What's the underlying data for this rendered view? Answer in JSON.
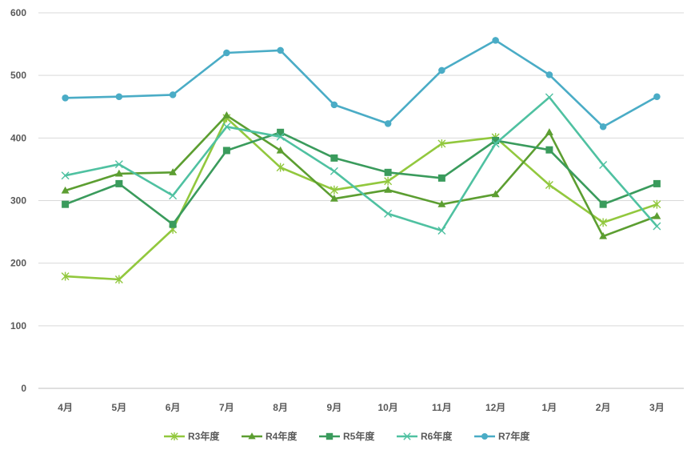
{
  "chart_data": {
    "type": "line",
    "categories": [
      "4月",
      "5月",
      "6月",
      "7月",
      "8月",
      "9月",
      "10月",
      "11月",
      "12月",
      "1月",
      "2月",
      "3月"
    ],
    "series": [
      {
        "name": "R3年度",
        "color": "#92c83e",
        "marker": "star",
        "values": [
          179,
          174,
          254,
          432,
          353,
          317,
          331,
          391,
          401,
          325,
          265,
          294
        ]
      },
      {
        "name": "R4年度",
        "color": "#5c9e31",
        "marker": "triangle",
        "values": [
          316,
          343,
          345,
          436,
          380,
          303,
          317,
          294,
          310,
          409,
          243,
          275
        ]
      },
      {
        "name": "R5年度",
        "color": "#3a9b5c",
        "marker": "square",
        "values": [
          294,
          327,
          262,
          380,
          409,
          368,
          345,
          336,
          396,
          381,
          294,
          327
        ]
      },
      {
        "name": "R6年度",
        "color": "#4fc1a1",
        "marker": "x",
        "values": [
          340,
          358,
          308,
          418,
          402,
          347,
          279,
          252,
          391,
          465,
          357,
          259
        ]
      },
      {
        "name": "R7年度",
        "color": "#4aacc6",
        "marker": "circle",
        "values": [
          464,
          466,
          469,
          536,
          540,
          453,
          423,
          508,
          556,
          501,
          418,
          466
        ]
      }
    ],
    "ylim": [
      0,
      600
    ],
    "yticks": [
      0,
      100,
      200,
      300,
      400,
      500,
      600
    ],
    "grid": true,
    "legend": "bottom"
  }
}
